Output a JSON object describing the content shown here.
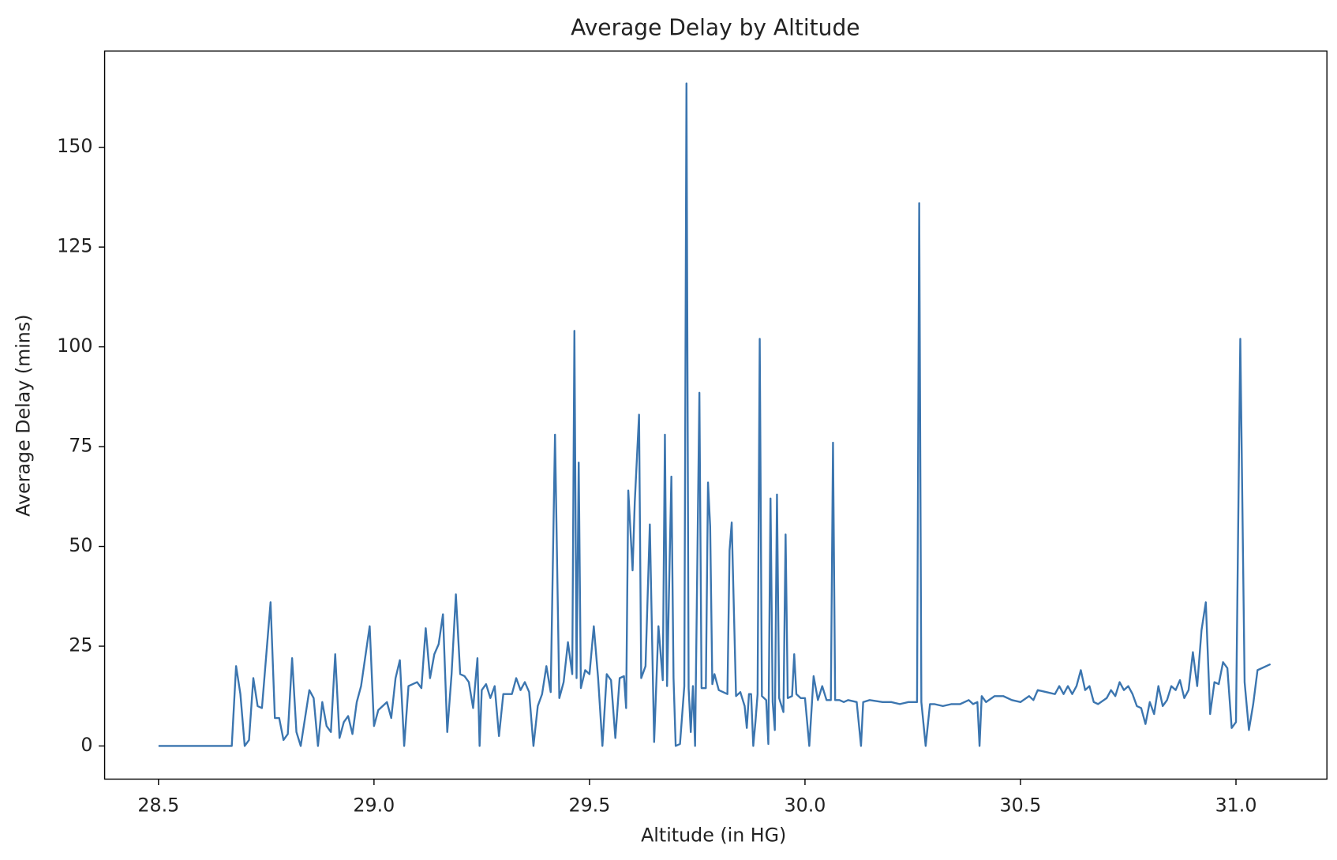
{
  "chart_data": {
    "type": "line",
    "title": "Average Delay by Altitude",
    "x_label": "Altitude (in HG)",
    "y_label": "Average Delay (mins)",
    "color": "#3b75af",
    "grid": false,
    "xlim": [
      28.375,
      31.211
    ],
    "ylim": [
      -8.3,
      174.1
    ],
    "xticks": [
      28.5,
      {
        "value": 29,
        "label": "29.0"
      },
      29.5,
      {
        "value": 30,
        "label": "30.0"
      },
      30.5,
      {
        "value": 31,
        "label": "31.0"
      }
    ],
    "yticks": [
      0,
      25,
      50,
      75,
      100,
      125,
      150
    ],
    "x": [
      28.5,
      28.67,
      28.68,
      28.69,
      28.7,
      28.71,
      28.72,
      28.73,
      28.74,
      28.76,
      28.77,
      28.78,
      28.79,
      28.8,
      28.81,
      28.82,
      28.83,
      28.84,
      28.85,
      28.86,
      28.87,
      28.88,
      28.89,
      28.9,
      28.91,
      28.92,
      28.93,
      28.94,
      28.95,
      28.96,
      28.97,
      28.99,
      29.0,
      29.01,
      29.03,
      29.04,
      29.05,
      29.06,
      29.07,
      29.08,
      29.1,
      29.11,
      29.12,
      29.13,
      29.14,
      29.15,
      29.16,
      29.17,
      29.18,
      29.19,
      29.2,
      29.21,
      29.22,
      29.23,
      29.24,
      29.245,
      29.25,
      29.26,
      29.27,
      29.28,
      29.29,
      29.3,
      29.32,
      29.33,
      29.34,
      29.35,
      29.36,
      29.37,
      29.38,
      29.39,
      29.4,
      29.41,
      29.42,
      29.43,
      29.44,
      29.45,
      29.46,
      29.465,
      29.47,
      29.475,
      29.48,
      29.49,
      29.5,
      29.51,
      29.52,
      29.53,
      29.54,
      29.55,
      29.56,
      29.57,
      29.58,
      29.585,
      29.59,
      29.6,
      29.605,
      29.615,
      29.62,
      29.63,
      29.64,
      29.65,
      29.66,
      29.67,
      29.675,
      29.68,
      29.69,
      29.695,
      29.7,
      29.71,
      29.72,
      29.725,
      29.73,
      29.735,
      29.74,
      29.745,
      29.755,
      29.76,
      29.77,
      29.775,
      29.78,
      29.785,
      29.79,
      29.8,
      29.82,
      29.825,
      29.83,
      29.84,
      29.85,
      29.86,
      29.865,
      29.87,
      29.875,
      29.88,
      29.885,
      29.89,
      29.895,
      29.9,
      29.91,
      29.915,
      29.92,
      29.925,
      29.93,
      29.935,
      29.94,
      29.95,
      29.955,
      29.96,
      29.97,
      29.975,
      29.98,
      29.99,
      30.0,
      30.01,
      30.02,
      30.03,
      30.04,
      30.05,
      30.06,
      30.065,
      30.07,
      30.08,
      30.09,
      30.1,
      30.12,
      30.13,
      30.135,
      30.15,
      30.18,
      30.2,
      30.22,
      30.24,
      30.26,
      30.265,
      30.27,
      30.28,
      30.29,
      30.3,
      30.32,
      30.34,
      30.36,
      30.38,
      30.39,
      30.4,
      30.405,
      30.41,
      30.42,
      30.44,
      30.46,
      30.48,
      30.5,
      30.52,
      30.53,
      30.54,
      30.56,
      30.58,
      30.59,
      30.6,
      30.61,
      30.62,
      30.63,
      30.64,
      30.65,
      30.66,
      30.67,
      30.68,
      30.7,
      30.71,
      30.72,
      30.73,
      30.74,
      30.75,
      30.76,
      30.77,
      30.78,
      30.79,
      30.8,
      30.81,
      30.82,
      30.83,
      30.84,
      30.85,
      30.86,
      30.87,
      30.88,
      30.89,
      30.9,
      30.91,
      30.92,
      30.93,
      30.94,
      30.95,
      30.96,
      30.97,
      30.98,
      30.99,
      31.0,
      31.01,
      31.02,
      31.03,
      31.04,
      31.05,
      31.08
    ],
    "values": [
      0,
      0,
      20,
      13,
      0,
      1.5,
      17,
      10,
      9.5,
      36,
      7,
      7,
      1.5,
      3,
      22,
      3.5,
      0,
      7,
      14,
      12,
      0,
      11,
      5,
      3.5,
      23,
      2,
      6,
      7.5,
      3,
      11,
      15,
      30,
      5,
      9,
      11,
      7,
      17,
      21.5,
      0,
      15,
      16,
      14.5,
      29.5,
      17,
      23,
      25.5,
      33,
      3.5,
      18,
      38,
      18,
      17.5,
      16,
      9.5,
      22,
      0,
      14,
      15.5,
      12,
      15,
      2.5,
      13,
      13,
      17,
      14,
      16,
      13.5,
      0,
      10,
      13,
      20,
      13.5,
      78,
      12,
      16,
      26,
      18,
      104,
      17,
      71,
      14.5,
      19,
      18,
      30,
      17,
      0,
      18,
      16.5,
      2,
      17,
      17.5,
      9.5,
      64,
      44,
      61,
      83,
      17,
      20,
      55.5,
      1,
      30,
      16.5,
      78,
      15,
      67.5,
      17,
      0,
      0.5,
      15,
      166,
      14.5,
      3.5,
      15,
      0,
      88.5,
      14.5,
      14.5,
      66,
      55,
      15.5,
      18,
      14,
      13,
      49,
      56,
      12.5,
      13.5,
      10,
      4.5,
      13,
      13,
      0,
      6,
      13,
      102,
      12.5,
      11.5,
      0.5,
      62,
      11,
      4,
      63,
      12,
      8.5,
      53,
      12,
      12.5,
      23,
      13,
      12,
      12,
      0,
      17.5,
      11.5,
      15,
      11.5,
      11.5,
      76,
      11.5,
      11.5,
      11,
      11.5,
      11,
      0,
      11,
      11.5,
      11,
      11,
      10.5,
      11,
      11,
      136,
      11,
      0,
      10.5,
      10.5,
      10,
      10.5,
      10.5,
      11.5,
      10.5,
      11,
      0,
      12.5,
      11,
      12.5,
      12.5,
      11.5,
      11,
      12.5,
      11.5,
      14,
      13.5,
      13,
      15,
      13,
      15,
      13,
      15,
      19,
      14,
      15,
      11,
      10.5,
      12,
      14,
      12.5,
      16,
      14,
      15,
      13,
      10,
      9.5,
      5.5,
      11,
      8,
      15,
      10,
      11.5,
      15,
      14,
      16.5,
      12,
      14,
      23.5,
      15,
      29,
      36,
      8,
      16,
      15.5,
      21,
      19.5,
      4.5,
      6,
      102,
      16,
      4,
      10.5,
      19,
      20.5
    ]
  }
}
